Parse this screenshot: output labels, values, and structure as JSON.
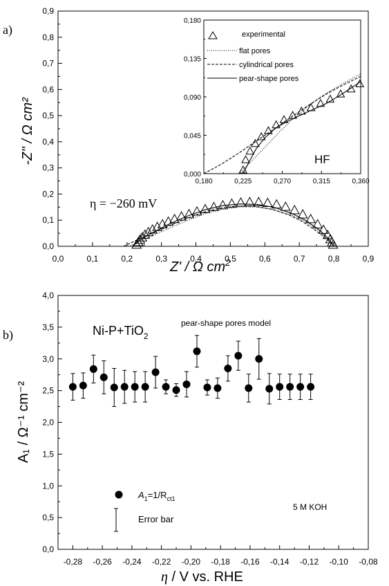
{
  "chart_data": [
    {
      "type": "scatter",
      "panel_label": "a)",
      "x_axis": {
        "min": 0.0,
        "max": 0.9,
        "ticks": [
          "0,0",
          "0,1",
          "0,2",
          "0,3",
          "0,4",
          "0,5",
          "0,6",
          "0,7",
          "0,8",
          "0,9"
        ],
        "label": "Z' / Ω cm²"
      },
      "y_axis": {
        "min": 0.0,
        "max": 0.9,
        "ticks": [
          "0,0",
          "0,1",
          "0,2",
          "0,3",
          "0,4",
          "0,5",
          "0,6",
          "0,7",
          "0,8",
          "0,9"
        ],
        "label": "-Z'' / Ω cm²"
      },
      "annotation": "η = −260 mV",
      "series": [
        {
          "name": "experimental",
          "style": "triangle",
          "x": [
            0.228,
            0.233,
            0.238,
            0.244,
            0.252,
            0.262,
            0.274,
            0.288,
            0.303,
            0.32,
            0.338,
            0.358,
            0.38,
            0.403,
            0.427,
            0.452,
            0.478,
            0.504,
            0.53,
            0.556,
            0.582,
            0.608,
            0.634,
            0.66,
            0.686,
            0.71,
            0.733,
            0.753,
            0.77,
            0.782,
            0.79,
            0.795,
            0.798
          ],
          "y": [
            0.005,
            0.015,
            0.024,
            0.033,
            0.043,
            0.053,
            0.063,
            0.073,
            0.083,
            0.093,
            0.103,
            0.113,
            0.122,
            0.132,
            0.141,
            0.149,
            0.156,
            0.162,
            0.166,
            0.168,
            0.168,
            0.165,
            0.159,
            0.15,
            0.137,
            0.121,
            0.103,
            0.083,
            0.062,
            0.042,
            0.026,
            0.014,
            0.005
          ]
        },
        {
          "name": "flat pores",
          "style": "dotted",
          "x": [
            0.205,
            0.22,
            0.24,
            0.26,
            0.29,
            0.33,
            0.38,
            0.43,
            0.48,
            0.53,
            0.58,
            0.63,
            0.68,
            0.72,
            0.76,
            0.785,
            0.8
          ],
          "y": [
            0.0,
            0.009,
            0.022,
            0.033,
            0.05,
            0.073,
            0.102,
            0.126,
            0.143,
            0.151,
            0.15,
            0.139,
            0.118,
            0.092,
            0.056,
            0.025,
            0.0
          ]
        },
        {
          "name": "cylindrical pores",
          "style": "dashed",
          "x": [
            0.19,
            0.21,
            0.23,
            0.25,
            0.28,
            0.32,
            0.37,
            0.42,
            0.47,
            0.52,
            0.57,
            0.62,
            0.67,
            0.71,
            0.75,
            0.78,
            0.8
          ],
          "y": [
            0.0,
            0.012,
            0.025,
            0.037,
            0.054,
            0.077,
            0.105,
            0.129,
            0.146,
            0.154,
            0.153,
            0.142,
            0.12,
            0.094,
            0.058,
            0.027,
            0.0
          ]
        },
        {
          "name": "pear-shape pores",
          "style": "solid",
          "x": [
            0.215,
            0.225,
            0.24,
            0.26,
            0.29,
            0.33,
            0.38,
            0.43,
            0.48,
            0.53,
            0.58,
            0.63,
            0.68,
            0.72,
            0.76,
            0.785,
            0.8
          ],
          "y": [
            0.0,
            0.01,
            0.026,
            0.042,
            0.063,
            0.09,
            0.118,
            0.141,
            0.156,
            0.162,
            0.16,
            0.148,
            0.125,
            0.098,
            0.061,
            0.028,
            0.0
          ]
        }
      ]
    },
    {
      "type": "line",
      "panel_label": "inset",
      "annotation": "HF",
      "x_axis": {
        "min": 0.18,
        "max": 0.36,
        "ticks": [
          "0,180",
          "0,225",
          "0,270",
          "0,315",
          "0,360"
        ]
      },
      "y_axis": {
        "min": 0.0,
        "max": 0.18,
        "ticks": [
          "0,000",
          "0,045",
          "0,090",
          "0,135",
          "0,180"
        ]
      },
      "legend": {
        "position": "top"
      },
      "series": [
        {
          "name": "experimental",
          "style": "triangle",
          "x": [
            0.225,
            0.228,
            0.233,
            0.239,
            0.246,
            0.254,
            0.263,
            0.272,
            0.282,
            0.292,
            0.303,
            0.314,
            0.325,
            0.337,
            0.349,
            0.359
          ],
          "y": [
            0.004,
            0.016,
            0.026,
            0.035,
            0.043,
            0.05,
            0.057,
            0.063,
            0.068,
            0.073,
            0.077,
            0.082,
            0.087,
            0.093,
            0.099,
            0.105
          ]
        },
        {
          "name": "flat pores",
          "style": "dotted",
          "x": [
            0.22,
            0.235,
            0.25,
            0.265,
            0.28,
            0.295,
            0.31,
            0.325,
            0.34,
            0.36
          ],
          "y": [
            0.0,
            0.015,
            0.031,
            0.047,
            0.062,
            0.075,
            0.087,
            0.097,
            0.106,
            0.117
          ]
        },
        {
          "name": "cylindrical pores",
          "style": "dashed",
          "x": [
            0.18,
            0.2,
            0.22,
            0.24,
            0.26,
            0.28,
            0.3,
            0.32,
            0.34,
            0.36
          ],
          "y": [
            0.0,
            0.011,
            0.024,
            0.038,
            0.052,
            0.066,
            0.08,
            0.093,
            0.104,
            0.114
          ]
        },
        {
          "name": "pear-shape pores",
          "style": "solid",
          "x": [
            0.225,
            0.232,
            0.24,
            0.25,
            0.262,
            0.275,
            0.29,
            0.305,
            0.32,
            0.335,
            0.35,
            0.36
          ],
          "y": [
            0.0,
            0.014,
            0.029,
            0.042,
            0.053,
            0.061,
            0.068,
            0.075,
            0.082,
            0.091,
            0.101,
            0.108
          ]
        }
      ]
    },
    {
      "type": "scatter",
      "panel_label": "b)",
      "x_axis": {
        "min": -0.29,
        "max": -0.08,
        "ticks": [
          "-0,28",
          "-0,26",
          "-0,24",
          "-0,22",
          "-0,20",
          "-0,18",
          "-0,16",
          "-0,14",
          "-0,12",
          "-0,10",
          "-0,08"
        ],
        "label": "η / V vs. RHE"
      },
      "y_axis": {
        "min": 0.0,
        "max": 4.0,
        "ticks": [
          "0,0",
          "0,5",
          "1,0",
          "1,5",
          "2,0",
          "2,5",
          "3,0",
          "3,5",
          "4,0"
        ],
        "label": "A₁ / Ω⁻¹ cm⁻²"
      },
      "title": "Ni-P+TiO₂",
      "subtitle": "pear-shape pores model",
      "annotation": "5 M KOH",
      "legend": {
        "position": "bottom-left",
        "items": [
          "A₁=1/Rct1",
          "Error bar"
        ]
      },
      "series": [
        {
          "name": "A₁=1/Rct1",
          "x": [
            -0.28,
            -0.273,
            -0.266,
            -0.259,
            -0.252,
            -0.245,
            -0.238,
            -0.231,
            -0.224,
            -0.217,
            -0.21,
            -0.203,
            -0.196,
            -0.189,
            -0.182,
            -0.175,
            -0.168,
            -0.161,
            -0.154,
            -0.147,
            -0.14,
            -0.133,
            -0.126,
            -0.119
          ],
          "y": [
            2.56,
            2.58,
            2.84,
            2.71,
            2.55,
            2.56,
            2.56,
            2.56,
            2.79,
            2.56,
            2.51,
            2.6,
            3.12,
            2.55,
            2.54,
            2.85,
            3.05,
            2.54,
            3.0,
            2.53,
            2.56,
            2.56,
            2.56,
            2.56
          ],
          "err": [
            0.21,
            0.2,
            0.22,
            0.26,
            0.3,
            0.26,
            0.24,
            0.24,
            0.25,
            0.11,
            0.1,
            0.2,
            0.25,
            0.12,
            0.16,
            0.2,
            0.23,
            0.22,
            0.32,
            0.24,
            0.2,
            0.2,
            0.2,
            0.2
          ]
        }
      ]
    }
  ],
  "labels": {
    "a_panel": "a)",
    "b_panel": "b)",
    "a_xlabel_main": "Z' / Ω cm",
    "a_xlabel_sup": "2",
    "a_ylabel": "-Z'' / Ω cm²",
    "eta_label": "η = −260 mV",
    "hf": "HF",
    "legend_exp": "experimental",
    "legend_flat": "flat pores",
    "legend_cyl": "cylindrical pores",
    "legend_pear": "pear-shape pores",
    "b_title_main": "Ni-P+TiO",
    "b_title_sub": "2",
    "b_subtitle": "pear-shape pores model",
    "b_koh": "5 M KOH",
    "b_legend_a1": "A",
    "b_legend_a1_sub": "1",
    "b_legend_eq": "=1/R",
    "b_legend_rct": "ct1",
    "b_legend_err": "Error bar",
    "b_xlabel_eta": "η",
    "b_xlabel_rest": " / V vs. RHE",
    "b_ylabel": "A₁ / Ω⁻¹ cm⁻²"
  }
}
